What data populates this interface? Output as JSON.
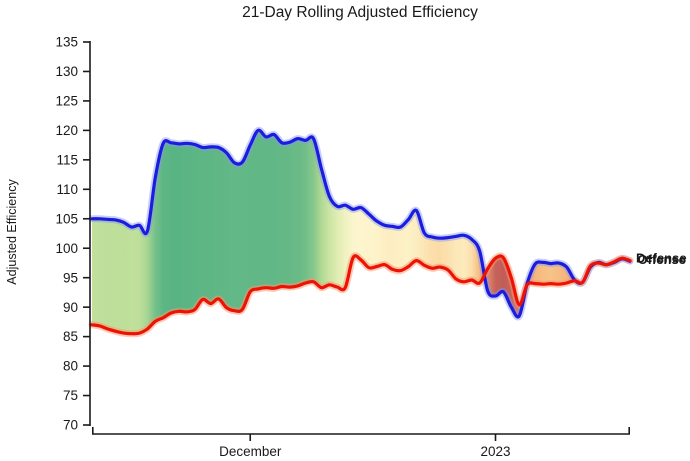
{
  "title": "21-Day Rolling Adjusted Efficiency",
  "y_axis": {
    "label": "Adjusted Efficiency",
    "min": 70,
    "max": 135,
    "ticks": [
      70,
      75,
      80,
      85,
      90,
      95,
      100,
      105,
      110,
      115,
      120,
      125,
      130,
      135
    ]
  },
  "x_axis": {
    "ticks": [
      {
        "label": "December",
        "index": 20
      },
      {
        "label": "2023",
        "index": 51
      }
    ]
  },
  "series_labels": {
    "offense": "Offense",
    "defense": "Defense"
  },
  "colors": {
    "offense_line": "#1c1ce0",
    "defense_line": "#ee1205",
    "offense_halo": "rgba(130,150,240,0.45)",
    "defense_halo": "rgba(250,150,110,0.5)",
    "axis": "#1a1a1a",
    "text": "#1a1a1a",
    "background": "#ffffff"
  },
  "chart_data": {
    "type": "line",
    "title": "21-Day Rolling Adjusted Efficiency",
    "xlabel": "",
    "ylabel": "Adjusted Efficiency",
    "ylim": [
      70,
      135
    ],
    "grid": false,
    "legend_position": "end-of-line-labels",
    "x_tick_labels": [
      "December",
      "2023"
    ],
    "x_tick_indices": [
      20,
      51
    ],
    "n_points": 69,
    "series": [
      {
        "name": "Offense",
        "color": "#1c1ce0",
        "values": [
          105.0,
          105.0,
          104.9,
          104.8,
          104.4,
          103.6,
          103.9,
          102.9,
          112.0,
          117.8,
          117.9,
          117.7,
          117.8,
          117.6,
          117.1,
          117.2,
          117.1,
          116.2,
          114.5,
          114.6,
          117.5,
          120.0,
          118.9,
          119.3,
          117.9,
          118.0,
          118.6,
          118.3,
          118.6,
          113.5,
          108.8,
          107.1,
          107.3,
          106.6,
          106.9,
          105.8,
          104.6,
          103.9,
          103.7,
          103.6,
          104.9,
          106.4,
          102.6,
          101.9,
          101.7,
          101.8,
          102.0,
          102.2,
          101.5,
          99.5,
          92.8,
          91.9,
          92.6,
          90.0,
          88.5,
          94.0,
          97.3,
          97.6,
          97.4,
          97.5,
          96.8,
          94.6,
          94.2,
          96.8,
          97.6,
          97.2,
          97.6,
          98.2,
          97.8
        ]
      },
      {
        "name": "Defense",
        "color": "#ee1205",
        "values": [
          87.0,
          86.8,
          86.3,
          85.9,
          85.6,
          85.5,
          85.6,
          86.3,
          87.6,
          88.2,
          89.0,
          89.3,
          89.2,
          89.6,
          91.3,
          90.6,
          91.4,
          89.9,
          89.4,
          89.6,
          92.6,
          93.1,
          93.3,
          93.2,
          93.5,
          93.4,
          93.6,
          94.1,
          94.3,
          93.3,
          93.8,
          93.4,
          93.3,
          98.4,
          98.0,
          96.7,
          96.9,
          97.2,
          96.4,
          96.2,
          96.9,
          97.9,
          97.1,
          96.6,
          96.8,
          96.3,
          94.8,
          94.3,
          94.6,
          94.1,
          96.5,
          98.3,
          98.4,
          95.0,
          90.4,
          93.8,
          94.0,
          93.9,
          94.0,
          93.9,
          94.1,
          94.5,
          94.2,
          97.0,
          97.5,
          97.2,
          97.7,
          98.3,
          97.9
        ]
      }
    ],
    "band_fill": {
      "description": "area between Offense and Defense curves, colored by smoothed (Offense - Defense) margin",
      "diff_color_stops": [
        [
          -7,
          "#b85150"
        ],
        [
          -3,
          "#cb6a5f"
        ],
        [
          0,
          "#f0a173"
        ],
        [
          3,
          "#f6bd82"
        ],
        [
          5.5,
          "#fbdda8"
        ],
        [
          8,
          "#fdf4cb"
        ],
        [
          10,
          "#fdf6cf"
        ],
        [
          13,
          "#eaf0bb"
        ],
        [
          16,
          "#d0e7a7"
        ],
        [
          19,
          "#bade98"
        ],
        [
          22,
          "#8dc98c"
        ],
        [
          25,
          "#63b886"
        ],
        [
          31,
          "#52b181"
        ]
      ]
    }
  }
}
